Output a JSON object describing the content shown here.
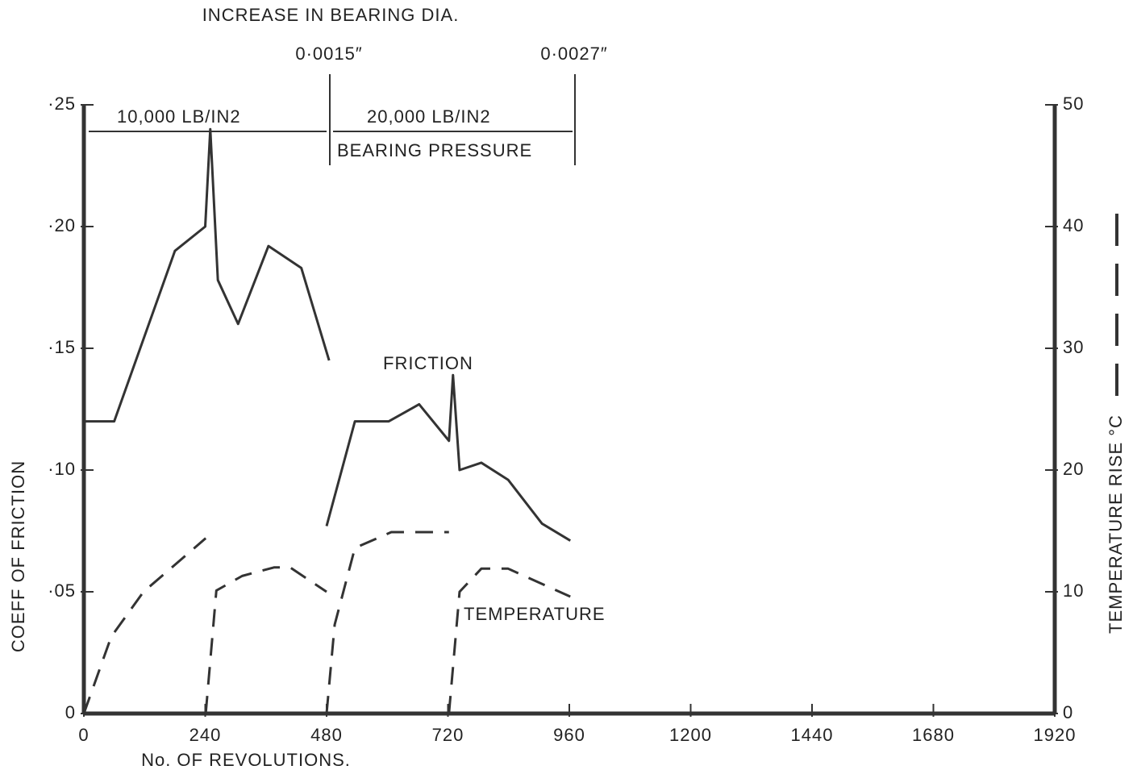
{
  "chart_data": {
    "type": "line",
    "xlabel": "No.  OF  REVOLUTIONS.",
    "ylabel": "COEFF  OF  FRICTION",
    "y2label": "TEMPERATURE   RISE   °C",
    "annotations": {
      "top": "INCREASE  IN  BEARING  DIA.",
      "dia1": "0·0015″",
      "dia2": "0·0027″",
      "load1": "10,000 LB/IN2",
      "load2": "20,000 LB/IN2",
      "pressure": "BEARING  PRESSURE"
    },
    "xlim": [
      0,
      1920
    ],
    "xticks": [
      0,
      240,
      480,
      720,
      960,
      1200,
      1440,
      1680,
      1920
    ],
    "ylim": [
      0,
      0.25
    ],
    "yticks": [
      0,
      {
        "value": 0.05,
        "label": "·05"
      },
      {
        "value": 0.1,
        "label": "·10"
      },
      {
        "value": 0.15,
        "label": "·15"
      },
      {
        "value": 0.2,
        "label": "·20"
      },
      {
        "value": 0.25,
        "label": "·25"
      }
    ],
    "y2lim": [
      0,
      50
    ],
    "y2ticks": [
      0,
      10,
      20,
      30,
      40,
      50
    ],
    "series": [
      {
        "name": "FRICTION",
        "color": "#333",
        "dash": false,
        "x": [
          0,
          60,
          120,
          180,
          240,
          250,
          265,
          305,
          365,
          430,
          485,
          null,
          480,
          536,
          603,
          663,
          722,
          730,
          743,
          786,
          839,
          906,
          962
        ],
        "values": [
          0.12,
          0.12,
          0.155,
          0.19,
          0.2,
          0.24,
          0.178,
          0.16,
          0.192,
          0.183,
          0.145,
          null,
          0.077,
          0.12,
          0.12,
          0.127,
          0.112,
          0.139,
          0.1,
          0.103,
          0.096,
          0.078,
          0.071
        ]
      },
      {
        "name": "TEMPERATURE",
        "color": "#333",
        "dash": true,
        "axis": "y2",
        "x": [
          0,
          54,
          118,
          241,
          null,
          241,
          262,
          313,
          376,
          408,
          480,
          null,
          480,
          496,
          536,
          608,
          722,
          null,
          722,
          743,
          786,
          839,
          962
        ],
        "values": [
          0,
          6.3,
          10,
          14.4,
          null,
          0,
          10.1,
          11.3,
          12,
          12,
          10,
          null,
          0,
          7.3,
          13.6,
          14.9,
          14.9,
          null,
          0,
          10,
          11.9,
          11.9,
          9.6
        ]
      }
    ]
  }
}
